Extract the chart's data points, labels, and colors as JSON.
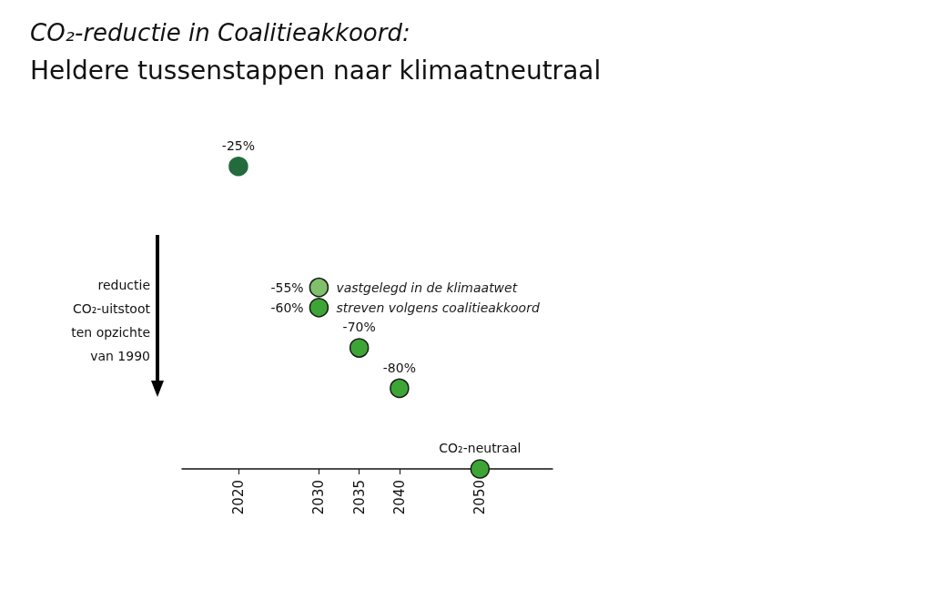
{
  "chart_data": {
    "type": "scatter",
    "title": "CO₂-reductie in Coalitieakkoord:",
    "subtitle": "Heldere tussenstappen naar klimaatneutraal",
    "ylabel": "reductie\nCO₂-uitstoot\nten opzichte\nvan 1990",
    "x": [
      2020,
      2030,
      2030,
      2035,
      2040,
      2050
    ],
    "values": [
      -25,
      -55,
      -60,
      -70,
      -80,
      -100
    ],
    "colors": [
      "#236b3d",
      "#80c06c",
      "#3da535",
      "#3da535",
      "#3da535",
      "#3da535"
    ],
    "value_labels": [
      "-25%",
      "-55%",
      "-60%",
      "-70%",
      "-80%",
      "CO₂-neutraal"
    ],
    "annotations": [
      {
        "text": "vastgelegd in de klimaatwet",
        "x": 2030,
        "y": -55
      },
      {
        "text": "streven volgens coalitieakkoord",
        "x": 2030,
        "y": -60
      }
    ],
    "xlim": [
      2013,
      2059
    ],
    "xticks": [
      2020,
      2030,
      2035,
      2040,
      2050
    ],
    "tick_labels": "x",
    "marker": "circle",
    "grid": false
  }
}
